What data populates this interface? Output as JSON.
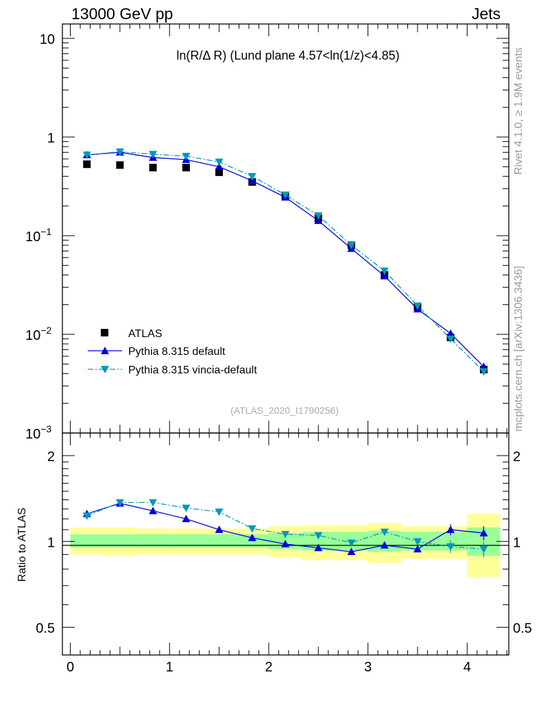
{
  "header": {
    "left": "13000 GeV pp",
    "right": "Jets"
  },
  "side_labels": {
    "rivet": "Rivet 4.1.0, ≥ 1.9M events",
    "mcplots": "mcplots.cern.ch [arXiv:1306.3436]"
  },
  "chart_data": {
    "type": "line",
    "title": "ln(R/Δ R) (Lund plane 4.57<ln(1/z)<4.85)",
    "watermark": "(ATLAS_2020_I1790256)",
    "xlabel": "",
    "ylabel_ratio": "Ratio to ATLAS",
    "xlim": [
      -0.08,
      4.42
    ],
    "ylim_main": [
      0.001,
      14
    ],
    "ylog_main": true,
    "ylim_ratio": [
      0.4,
      2.4
    ],
    "ylog_ratio": true,
    "x_ticks": [
      "0",
      "1",
      "2",
      "3",
      "4"
    ],
    "y_ticks_main": [
      {
        "base": "10",
        "exp": ""
      },
      {
        "base": "1",
        "exp": ""
      },
      {
        "base": "10",
        "exp": "−1"
      },
      {
        "base": "10",
        "exp": "−2"
      },
      {
        "base": "10",
        "exp": "−3"
      }
    ],
    "y_ticks_ratio": [
      "2",
      "1",
      "0.5"
    ],
    "x": [
      0.167,
      0.5,
      0.833,
      1.167,
      1.5,
      1.833,
      2.167,
      2.5,
      2.833,
      3.167,
      3.5,
      3.833,
      4.167
    ],
    "bin_edges": [
      0,
      0.333,
      0.667,
      1.0,
      1.333,
      1.667,
      2.0,
      2.333,
      2.667,
      3.0,
      3.333,
      3.667,
      4.0,
      4.333
    ],
    "series": [
      {
        "name": "ATLAS",
        "color": "#000000",
        "marker": "square",
        "values": [
          0.53,
          0.52,
          0.49,
          0.49,
          0.44,
          0.35,
          0.25,
          0.15,
          0.08,
          0.04,
          0.019,
          0.0093,
          0.0044
        ]
      },
      {
        "name": "Pythia 8.315 default",
        "color": "#0000dd",
        "marker": "triangle-up",
        "line": "solid",
        "values": [
          0.66,
          0.7,
          0.62,
          0.59,
          0.5,
          0.36,
          0.245,
          0.142,
          0.074,
          0.039,
          0.018,
          0.0102,
          0.0047
        ]
      },
      {
        "name": "Pythia 8.315 vincia-default",
        "color": "#0099bb",
        "marker": "triangle-down",
        "line": "dashdot",
        "values": [
          0.66,
          0.71,
          0.67,
          0.64,
          0.56,
          0.4,
          0.26,
          0.16,
          0.08,
          0.044,
          0.0195,
          0.009,
          0.0042
        ]
      }
    ],
    "ratio": [
      {
        "name": "Pythia 8.315 default",
        "values": [
          1.25,
          1.36,
          1.28,
          1.2,
          1.1,
          1.03,
          0.98,
          0.95,
          0.92,
          0.97,
          0.94,
          1.1,
          1.07
        ],
        "errors": [
          0.02,
          0.02,
          0.02,
          0.02,
          0.02,
          0.02,
          0.01,
          0.01,
          0.01,
          0.01,
          0.02,
          0.05,
          0.06
        ]
      },
      {
        "name": "Pythia 8.315 vincia-default",
        "values": [
          1.23,
          1.37,
          1.37,
          1.31,
          1.27,
          1.11,
          1.06,
          1.05,
          0.99,
          1.08,
          1.0,
          0.96,
          0.94
        ],
        "errors": [
          0.02,
          0.02,
          0.02,
          0.02,
          0.02,
          0.02,
          0.01,
          0.01,
          0.01,
          0.01,
          0.02,
          0.05,
          0.06
        ]
      }
    ],
    "uncertainty_bands": {
      "inner_color": "#99ff99",
      "outer_color": "#ffff99",
      "inner": [
        [
          0.95,
          1.06
        ],
        [
          0.95,
          1.06
        ],
        [
          0.95,
          1.06
        ],
        [
          0.95,
          1.06
        ],
        [
          0.95,
          1.06
        ],
        [
          0.95,
          1.06
        ],
        [
          0.94,
          1.07
        ],
        [
          0.93,
          1.08
        ],
        [
          0.93,
          1.08
        ],
        [
          0.92,
          1.09
        ],
        [
          0.93,
          1.08
        ],
        [
          0.93,
          1.08
        ],
        [
          0.89,
          1.12
        ]
      ],
      "outer": [
        [
          0.9,
          1.12
        ],
        [
          0.89,
          1.12
        ],
        [
          0.9,
          1.11
        ],
        [
          0.9,
          1.11
        ],
        [
          0.9,
          1.11
        ],
        [
          0.9,
          1.11
        ],
        [
          0.88,
          1.13
        ],
        [
          0.86,
          1.14
        ],
        [
          0.86,
          1.14
        ],
        [
          0.84,
          1.16
        ],
        [
          0.87,
          1.13
        ],
        [
          0.87,
          1.13
        ],
        [
          0.75,
          1.25
        ]
      ]
    }
  }
}
